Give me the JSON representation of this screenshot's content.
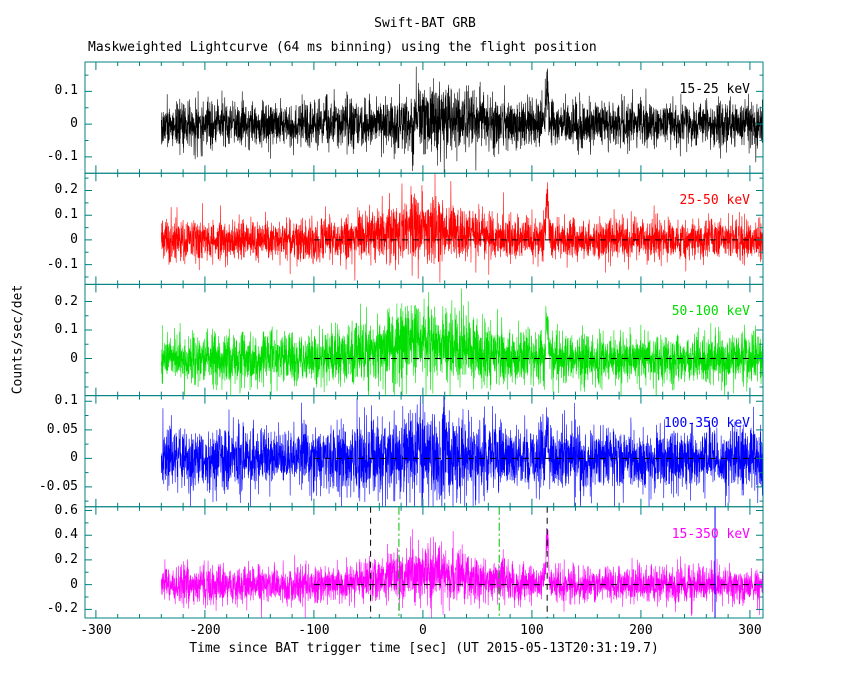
{
  "chart_data": {
    "type": "line",
    "title": "Swift-BAT GRB",
    "subtitle": "Maskweighted Lightcurve (64 ms binning) using the flight position",
    "xlabel": "Time since BAT trigger time [sec] (UT 2015-05-13T20:31:19.7)",
    "ylabel": "Counts/sec/det",
    "xlim": [
      -310,
      312
    ],
    "xticks": [
      -300,
      -200,
      -100,
      0,
      100,
      200,
      300
    ],
    "x_minor_step": 20,
    "x_data_range": [
      -240,
      312
    ],
    "bin_sec": 0.064,
    "axis_color": "#008080",
    "grid": false,
    "legend_position": "inside-right-per-panel",
    "panels": [
      {
        "label": "15-25 keV",
        "color": "#000000",
        "ylim": [
          -0.15,
          0.19
        ],
        "yticks": [
          -0.1,
          0,
          0.1
        ],
        "noise_sigma": 0.035,
        "bump": {
          "center": 20,
          "width": 30,
          "amp": 0.015
        },
        "spike": {
          "t": 114,
          "width": 1.1,
          "amp": 0.13
        },
        "zero_dash": false,
        "vlines": []
      },
      {
        "label": "25-50 keV",
        "color": "#ff0000",
        "ylim": [
          -0.18,
          0.27
        ],
        "yticks": [
          -0.1,
          0,
          0.1,
          0.2
        ],
        "noise_sigma": 0.042,
        "bump": {
          "center": 0,
          "width": 40,
          "amp": 0.045
        },
        "spike": {
          "t": 114,
          "width": 1.1,
          "amp": 0.2
        },
        "zero_dash": true,
        "vlines": []
      },
      {
        "label": "50-100 keV",
        "color": "#00dd00",
        "ylim": [
          -0.13,
          0.26
        ],
        "yticks": [
          0,
          0.1,
          0.2
        ],
        "noise_sigma": 0.045,
        "bump": {
          "center": 0,
          "width": 40,
          "amp": 0.05
        },
        "spike": {
          "t": 114,
          "width": 1.1,
          "amp": 0.15
        },
        "zero_dash": true,
        "vlines": []
      },
      {
        "label": "100-350 keV",
        "color": "#0000ff",
        "ylim": [
          -0.085,
          0.11
        ],
        "yticks": [
          -0.05,
          0,
          0.05,
          0.1
        ],
        "noise_sigma": 0.027,
        "bump": {
          "center": 0,
          "width": 40,
          "amp": 0.006
        },
        "spike": {
          "t": 114,
          "width": 1.0,
          "amp": 0.045
        },
        "zero_dash": true,
        "vlines": []
      },
      {
        "label": "15-350 keV",
        "color": "#ff00ff",
        "ylim": [
          -0.27,
          0.63
        ],
        "yticks": [
          -0.2,
          0,
          0.2,
          0.4,
          0.6
        ],
        "noise_sigma": 0.075,
        "bump": {
          "center": 5,
          "width": 35,
          "amp": 0.1
        },
        "spike": {
          "t": 114,
          "width": 1.1,
          "amp": 0.42
        },
        "zero_dash": true,
        "vlines": [
          {
            "t": -48,
            "color": "#000000",
            "style": "dash"
          },
          {
            "t": -22,
            "color": "#00bb00",
            "style": "dashdot"
          },
          {
            "t": 70,
            "color": "#00bb00",
            "style": "dashdot"
          },
          {
            "t": 114,
            "color": "#000000",
            "style": "dash"
          },
          {
            "t": 268,
            "color": "#0000ff",
            "style": "solid"
          }
        ]
      }
    ],
    "zero_dash_range": [
      -100,
      312
    ]
  }
}
